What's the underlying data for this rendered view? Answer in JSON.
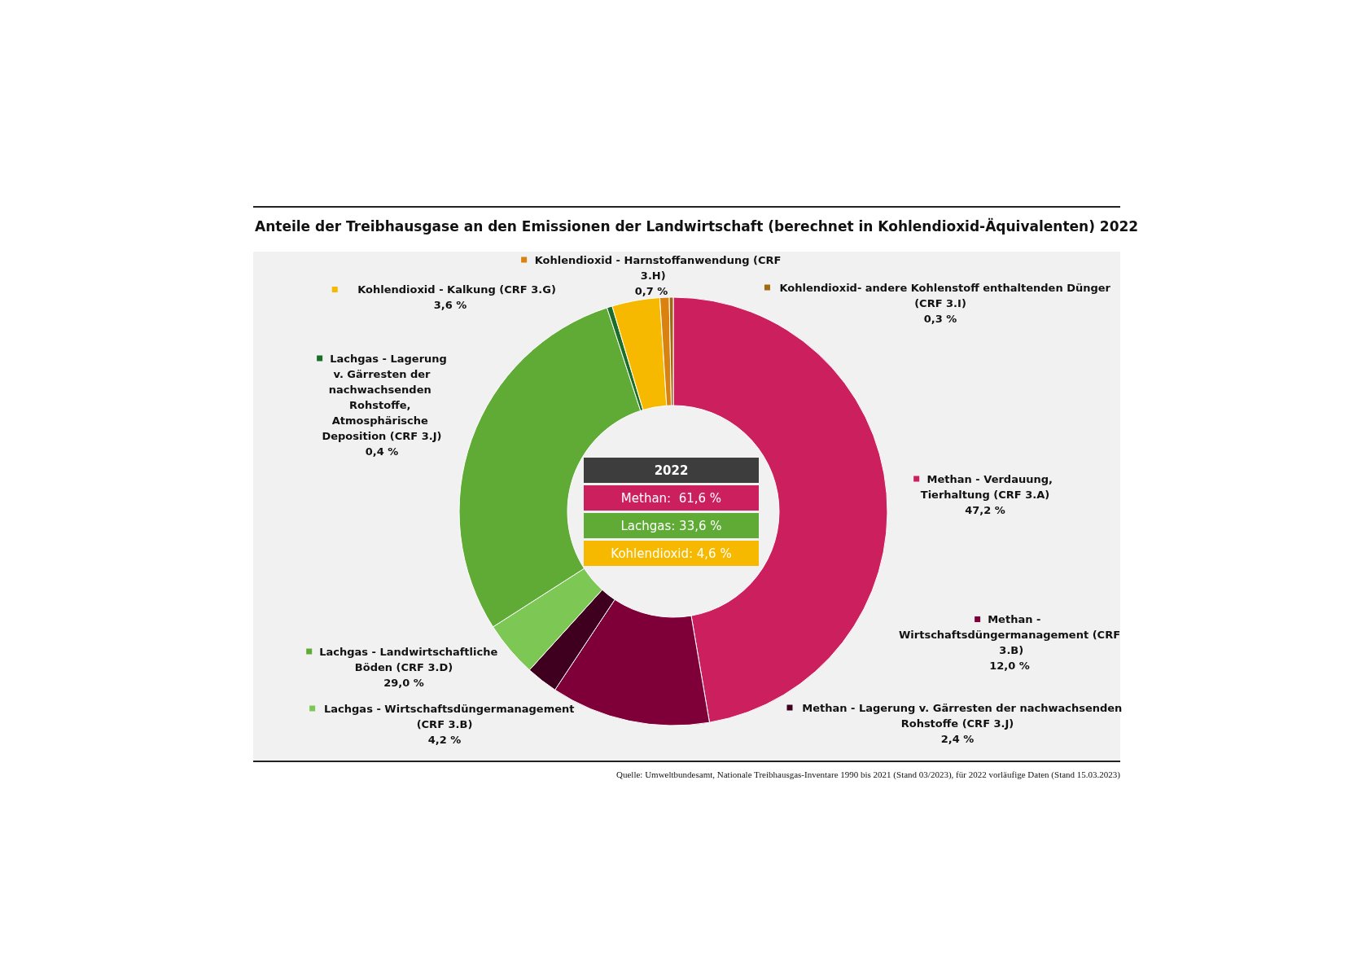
{
  "chart_data": {
    "type": "donut",
    "title": "Anteile der Treibhausgase an den Emissionen der Landwirtschaft (berechnet in Kohlendioxid-Äquivalenten) 2022",
    "categories": [
      "Methan - Verdauung, Tierhaltung (CRF 3.A)",
      "Methan - Wirtschaftsdüngermanagement (CRF 3.B)",
      "Methan - Lagerung v. Gärresten der nachwachsenden Rohstoffe (CRF 3.J)",
      "Lachgas - Wirtschaftsdüngermanagement (CRF 3.B)",
      "Lachgas - Landwirtschaftliche Böden (CRF 3.D)",
      "Lachgas - Lagerung v. Gärresten der nachwachsenden Rohstoffe, Atmosphärische Deposition (CRF 3.J)",
      "Kohlendioxid - Kalkung (CRF 3.G)",
      "Kohlendioxid - Harnstoffanwendung (CRF 3.H)",
      "Kohlendioxid- andere Kohlenstoff enthaltenden Dünger (CRF 3.I)"
    ],
    "values": [
      47.2,
      12.0,
      2.4,
      4.2,
      29.0,
      0.4,
      3.6,
      0.7,
      0.3
    ],
    "value_labels": [
      "47,2 %",
      "12,0 %",
      "2,4 %",
      "4,2 %",
      "29,0 %",
      "0,4 %",
      "3,6 %",
      "0,7 %",
      "0,3 %"
    ],
    "colors": [
      "#cc1f5e",
      "#7f0038",
      "#3f0020",
      "#7dc854",
      "#5fab35",
      "#1a6e28",
      "#f7b900",
      "#d9820f",
      "#a06a10"
    ],
    "legend": "right",
    "annotations": [
      "2022",
      "Methan:  61,6 %",
      "Lachgas: 33,6 %",
      "Kohlendioxid: 4,6 %",
      "Quelle: Umweltbundesamt, Nationale Treibhausgas-Inventare 1990 bis 2021 (Stand 03/2023), für 2022 vorläufige Daten (Stand 15.03.2023)"
    ]
  }
}
